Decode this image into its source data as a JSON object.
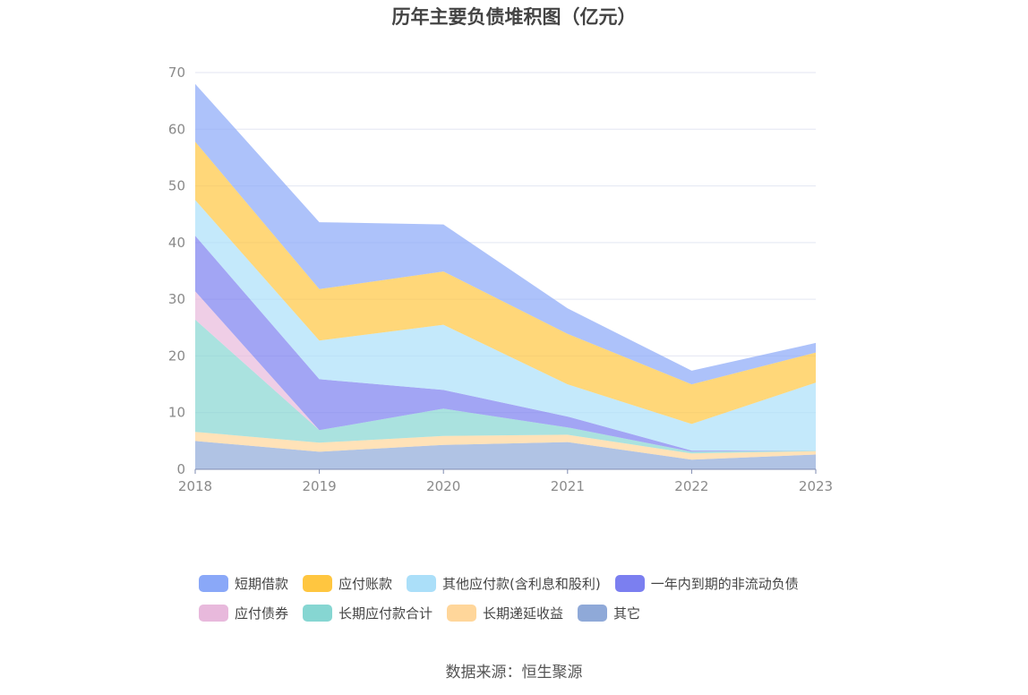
{
  "title": "历年主要负债堆积图（亿元）",
  "source": "数据来源：恒生聚源",
  "chart_data": {
    "type": "area",
    "stacked": true,
    "title": "历年主要负债堆积图（亿元）",
    "x": [
      "2018",
      "2019",
      "2020",
      "2021",
      "2022",
      "2023"
    ],
    "ylim": [
      0,
      70
    ],
    "yticks": [
      "0",
      "10",
      "20",
      "30",
      "40",
      "50",
      "60",
      "70"
    ],
    "grid": true,
    "legend_position": "bottom",
    "series": [
      {
        "name": "其它",
        "color": "#8fa9d8",
        "values": [
          5.0,
          3.1,
          4.3,
          4.8,
          1.7,
          2.6
        ]
      },
      {
        "name": "长期递延收益",
        "color": "#ffd69a",
        "values": [
          1.6,
          1.6,
          1.6,
          1.3,
          1.1,
          0.6
        ]
      },
      {
        "name": "长期应付款合计",
        "color": "#86d6d2",
        "values": [
          19.8,
          2.2,
          4.8,
          1.3,
          0.3,
          0.1
        ]
      },
      {
        "name": "应付债券",
        "color": "#e8b9dc",
        "values": [
          5.0,
          0.0,
          0.0,
          0.0,
          0.0,
          0.0
        ]
      },
      {
        "name": "一年内到期的非流动负债",
        "color": "#7b7ff0",
        "values": [
          9.8,
          9.0,
          3.3,
          1.9,
          0.2,
          0.0
        ]
      },
      {
        "name": "其他应付款(含利息和股利)",
        "color": "#abdff9",
        "values": [
          6.3,
          6.8,
          11.5,
          5.7,
          4.7,
          12.0
        ]
      },
      {
        "name": "应付账款",
        "color": "#ffc640",
        "values": [
          10.3,
          9.1,
          9.4,
          8.9,
          7.0,
          5.3
        ]
      },
      {
        "name": "短期借款",
        "color": "#8aa8f8",
        "values": [
          10.2,
          11.8,
          8.3,
          4.5,
          2.4,
          1.7
        ]
      }
    ]
  },
  "legend": {
    "row1": [
      "短期借款",
      "应付账款",
      "其他应付款(含利息和股利)",
      "一年内到期的非流动负债"
    ],
    "row2": [
      "应付债券",
      "长期应付款合计",
      "长期递延收益",
      "其它"
    ],
    "colors": {
      "短期借款": "#8aa8f8",
      "应付账款": "#ffc640",
      "其他应付款(含利息和股利)": "#abdff9",
      "一年内到期的非流动负债": "#7b7ff0",
      "应付债券": "#e8b9dc",
      "长期应付款合计": "#86d6d2",
      "长期递延收益": "#ffd69a",
      "其它": "#8fa9d8"
    }
  }
}
